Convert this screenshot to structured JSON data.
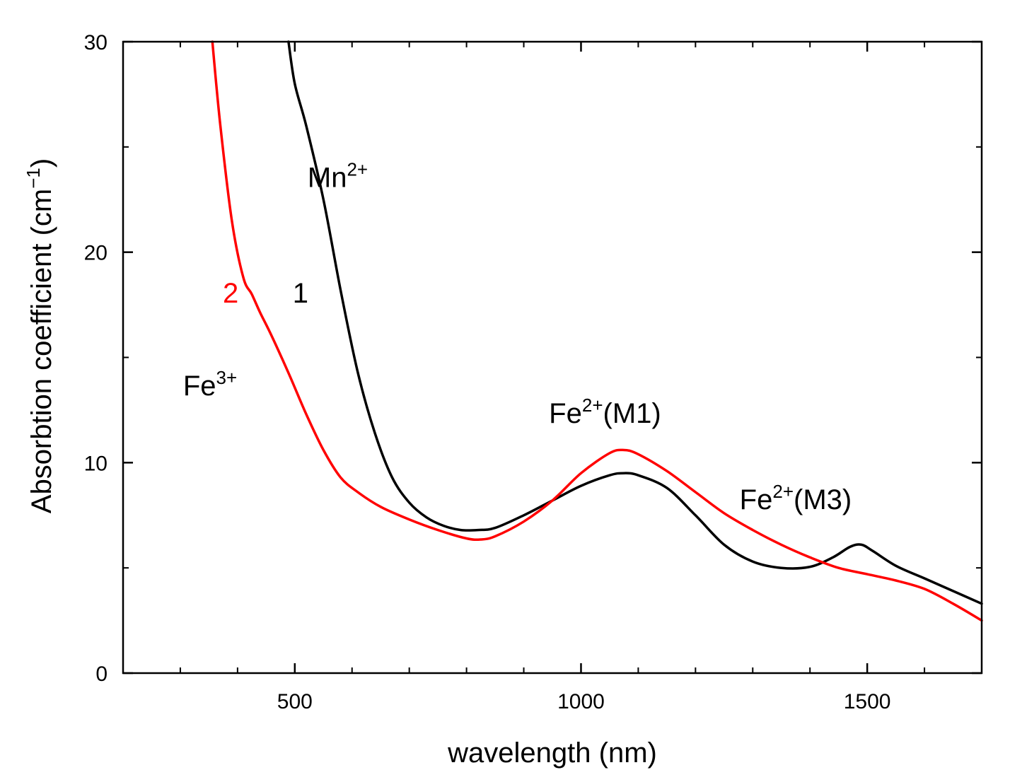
{
  "chart_data": {
    "type": "line",
    "title": "",
    "xlabel": "wavelength (nm)",
    "ylabel_main": "Absorbtion coefficient (cm",
    "ylabel_sup": "−1",
    "ylabel_close": ")",
    "xlim": [
      200,
      1700
    ],
    "ylim": [
      0,
      30
    ],
    "x_ticks": [
      {
        "value": 500,
        "label": "500"
      },
      {
        "value": 1000,
        "label": "1000"
      },
      {
        "value": 1500,
        "label": "1500"
      }
    ],
    "x_minor_ticks": [
      300,
      400,
      600,
      700,
      800,
      900,
      1100,
      1200,
      1300,
      1400,
      1600
    ],
    "y_ticks": [
      {
        "value": 0,
        "label": "0"
      },
      {
        "value": 10,
        "label": "10"
      },
      {
        "value": 20,
        "label": "20"
      },
      {
        "value": 30,
        "label": "30"
      }
    ],
    "y_minor_ticks": [
      5,
      15,
      25
    ],
    "grid": false,
    "series": [
      {
        "name": "1",
        "color": "#000000",
        "x": [
          489,
          500,
          520,
          550,
          580,
          610,
          640,
          670,
          700,
          730,
          760,
          790,
          820,
          850,
          900,
          950,
          1000,
          1050,
          1075,
          1100,
          1150,
          1200,
          1250,
          1300,
          1350,
          1400,
          1440,
          1470,
          1490,
          1510,
          1550,
          1600,
          1650,
          1700
        ],
        "values": [
          30.0,
          28.0,
          26.0,
          22.5,
          18.2,
          14.3,
          11.4,
          9.3,
          8.1,
          7.4,
          7.0,
          6.8,
          6.8,
          6.9,
          7.5,
          8.2,
          8.9,
          9.4,
          9.5,
          9.4,
          8.8,
          7.5,
          6.1,
          5.3,
          5.0,
          5.05,
          5.5,
          6.0,
          6.1,
          5.8,
          5.1,
          4.5,
          3.9,
          3.3
        ]
      },
      {
        "name": "2",
        "color": "#ff0000",
        "x": [
          356,
          370,
          390,
          410,
          425,
          440,
          460,
          490,
          520,
          550,
          580,
          610,
          650,
          700,
          750,
          800,
          825,
          850,
          900,
          950,
          1000,
          1050,
          1075,
          1100,
          1150,
          1200,
          1250,
          1300,
          1350,
          1400,
          1450,
          1500,
          1550,
          1600,
          1650,
          1700
        ],
        "values": [
          30.0,
          26.0,
          21.5,
          18.8,
          18.0,
          17.1,
          16.0,
          14.2,
          12.3,
          10.6,
          9.3,
          8.6,
          7.9,
          7.3,
          6.8,
          6.4,
          6.35,
          6.5,
          7.2,
          8.2,
          9.5,
          10.45,
          10.6,
          10.4,
          9.6,
          8.6,
          7.6,
          6.8,
          6.1,
          5.5,
          5.0,
          4.7,
          4.4,
          4.0,
          3.3,
          2.5
        ]
      }
    ],
    "annotations": [
      {
        "id": "series-1-label",
        "text": "1",
        "sup": "",
        "suffix": "",
        "color": "#000000",
        "x": 510,
        "y": 17.6
      },
      {
        "id": "series-2-label",
        "text": "2",
        "sup": "",
        "suffix": "",
        "color": "#ff0000",
        "x": 388,
        "y": 17.6
      },
      {
        "id": "mn2-label",
        "text": "Mn",
        "sup": "2+",
        "suffix": "",
        "color": "#000000",
        "x": 575,
        "y": 23.1
      },
      {
        "id": "fe3-label",
        "text": "Fe",
        "sup": "3+",
        "suffix": "",
        "color": "#000000",
        "x": 352,
        "y": 13.2
      },
      {
        "id": "fe2-m1-label",
        "text": "Fe",
        "sup": "2+",
        "suffix": "(M1)",
        "color": "#000000",
        "x": 1042,
        "y": 11.9
      },
      {
        "id": "fe2-m3-label",
        "text": "Fe",
        "sup": "2+",
        "suffix": "(M3)",
        "color": "#000000",
        "x": 1375,
        "y": 7.8
      }
    ]
  }
}
